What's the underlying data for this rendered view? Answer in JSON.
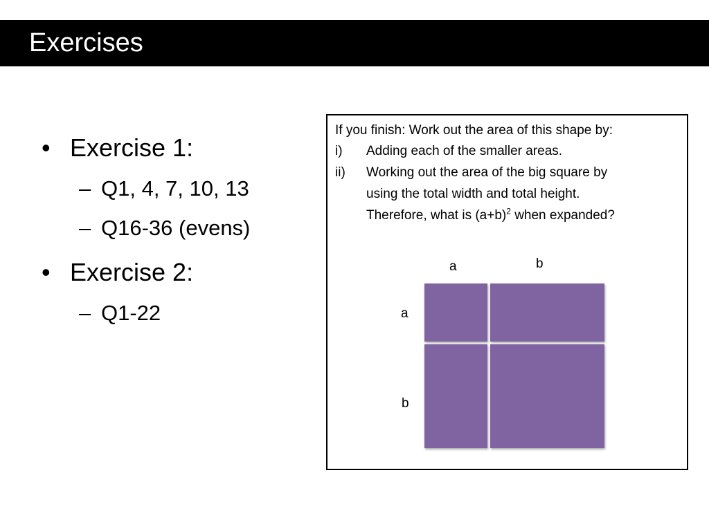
{
  "header": {
    "title": "Exercises"
  },
  "exercises": [
    {
      "bullet": "•",
      "label": "Exercise 1:",
      "items": [
        "Q1, 4, 7, 10, 13",
        "Q16-36 (evens)"
      ]
    },
    {
      "bullet": "•",
      "label": "Exercise 2:",
      "items": [
        "Q1-22"
      ]
    }
  ],
  "dash": "–",
  "extension": {
    "intro": "If you finish: Work out the area of this shape by:",
    "steps": [
      {
        "num": "i)",
        "lines": [
          "Adding each of the smaller areas."
        ]
      },
      {
        "num": "ii)",
        "lines": [
          "Working out the area of the big square by",
          "using the total width and total height."
        ],
        "last_before": "Therefore, what is (a+b)",
        "last_sup": "2",
        "last_after": " when expanded?"
      }
    ]
  },
  "diagram": {
    "top_labels": [
      "a",
      "b"
    ],
    "side_labels": [
      "a",
      "b"
    ],
    "fill_color": "#8064a2"
  }
}
